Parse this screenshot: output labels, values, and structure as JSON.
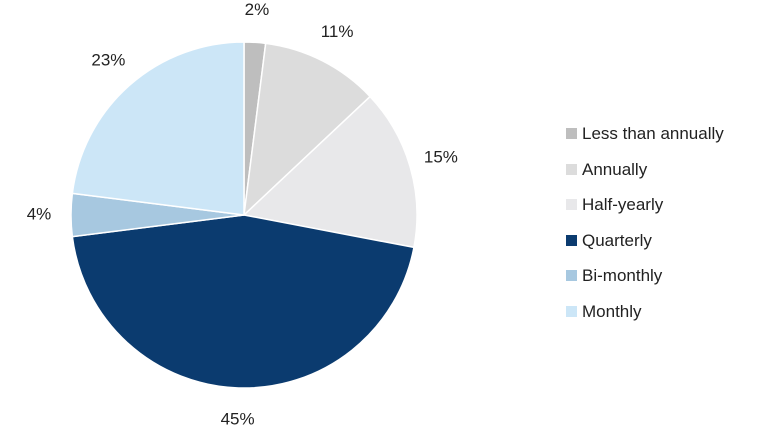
{
  "chart_data": {
    "type": "pie",
    "start_angle_deg": 0,
    "direction": "clockwise",
    "legend_position": "right",
    "slices": [
      {
        "label": "Less than annually",
        "value": 2,
        "data_label": "2%",
        "color": "#BEBEBE"
      },
      {
        "label": "Annually",
        "value": 11,
        "data_label": "11%",
        "color": "#DCDCDC"
      },
      {
        "label": "Half-yearly",
        "value": 15,
        "data_label": "15%",
        "color": "#E8E8EA"
      },
      {
        "label": "Quarterly",
        "value": 45,
        "data_label": "45%",
        "color": "#0B3B6F"
      },
      {
        "label": "Bi-monthly",
        "value": 4,
        "data_label": "4%",
        "color": "#A7C8E0"
      },
      {
        "label": "Monthly",
        "value": 23,
        "data_label": "23%",
        "color": "#CCE6F7"
      }
    ]
  }
}
